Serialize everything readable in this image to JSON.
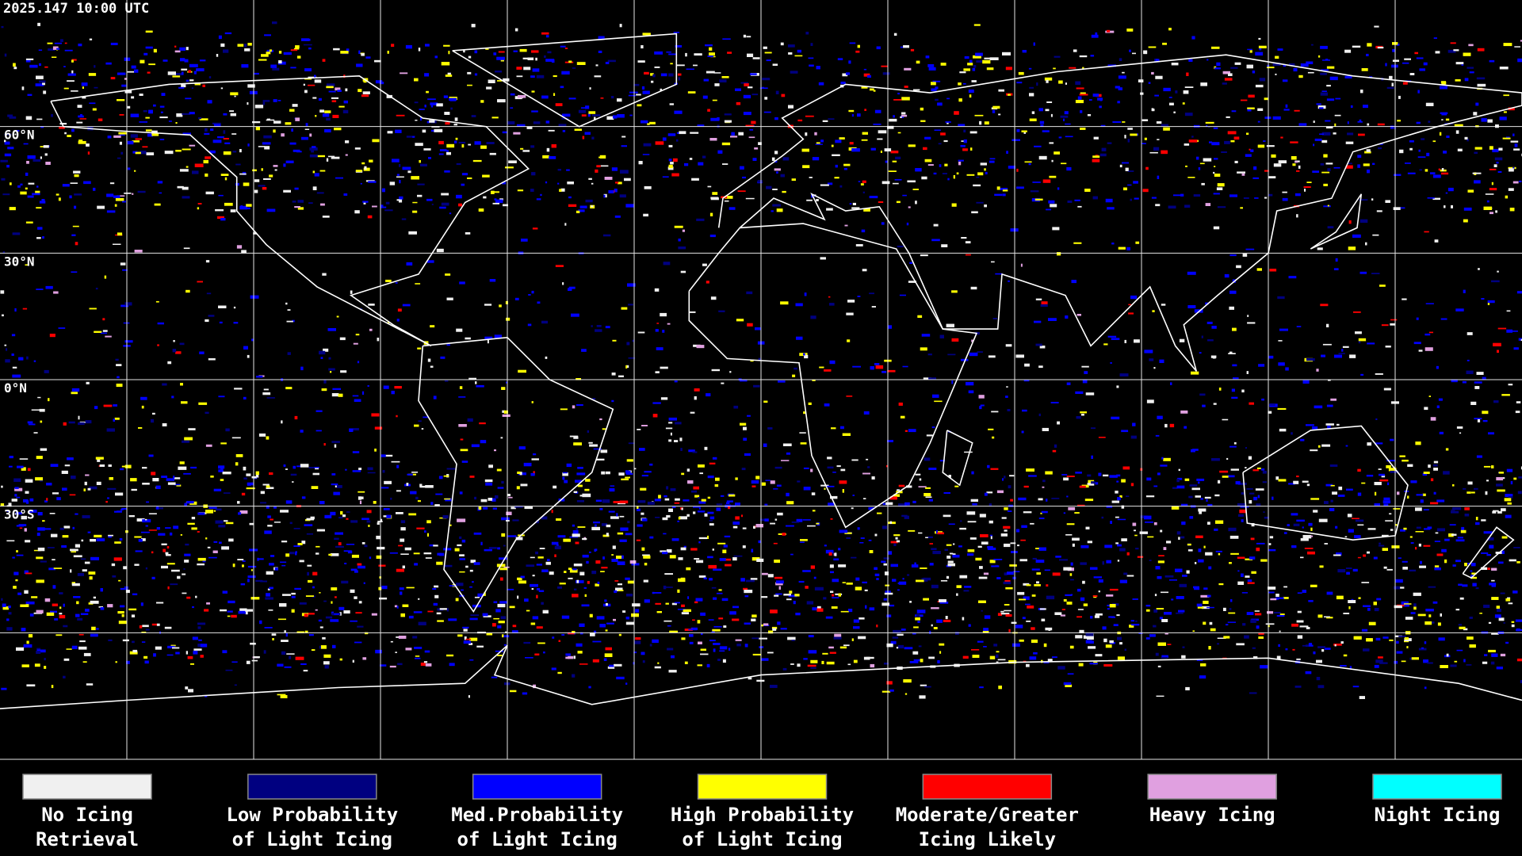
{
  "header": {
    "timestamp": "2025.147 10:00 UTC"
  },
  "map": {
    "latitude_labels": [
      "60°N",
      "30°N",
      "0°N",
      "30°S"
    ]
  },
  "legend": {
    "items": [
      {
        "label": [
          "No Icing",
          "Retrieval"
        ],
        "color": "#f0f0f0"
      },
      {
        "label": [
          "Low Probability",
          "of Light Icing"
        ],
        "color": "#000080"
      },
      {
        "label": [
          "Med.Probability",
          "of Light Icing"
        ],
        "color": "#0000ff"
      },
      {
        "label": [
          "High Probability",
          "of Light Icing"
        ],
        "color": "#ffff00"
      },
      {
        "label": [
          "Moderate/Greater",
          "Icing Likely"
        ],
        "color": "#ff0000"
      },
      {
        "label": [
          "Heavy Icing"
        ],
        "color": "#e0a0e0"
      },
      {
        "label": [
          "Night Icing"
        ],
        "color": "#00ffff"
      }
    ]
  }
}
